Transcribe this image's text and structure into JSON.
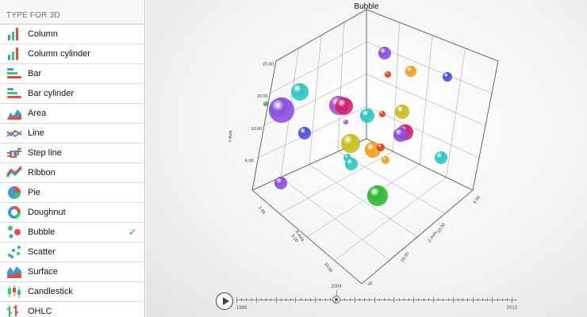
{
  "sidebar": {
    "header": "TYPE FOR 3D",
    "selected_index": 10,
    "items": [
      {
        "label": "Column",
        "icon": "column-chart-icon"
      },
      {
        "label": "Column cylinder",
        "icon": "column-cylinder-chart-icon"
      },
      {
        "label": "Bar",
        "icon": "bar-chart-icon"
      },
      {
        "label": "Bar cylinder",
        "icon": "bar-cylinder-chart-icon"
      },
      {
        "label": "Area",
        "icon": "area-chart-icon"
      },
      {
        "label": "Line",
        "icon": "line-chart-icon"
      },
      {
        "label": "Step line",
        "icon": "step-line-chart-icon"
      },
      {
        "label": "Ribbon",
        "icon": "ribbon-chart-icon"
      },
      {
        "label": "Pie",
        "icon": "pie-chart-icon"
      },
      {
        "label": "Doughnut",
        "icon": "doughnut-chart-icon"
      },
      {
        "label": "Bubble",
        "icon": "bubble-chart-icon"
      },
      {
        "label": "Scatter",
        "icon": "scatter-chart-icon"
      },
      {
        "label": "Surface",
        "icon": "surface-chart-icon"
      },
      {
        "label": "Candlestick",
        "icon": "candlestick-chart-icon"
      },
      {
        "label": "OHLC",
        "icon": "ohlc-chart-icon"
      }
    ],
    "check_glyph": "✓"
  },
  "chart": {
    "title": "Bubble",
    "y_axis_label": "Y-Axis",
    "x_axis_label": "X-Axis",
    "z_axis_label": "Z-Axis",
    "y_ticks": [
      "20.00",
      "15.00",
      "10.00",
      "5.00"
    ],
    "x_ticks": [
      "2.00",
      "5.00",
      "10.00",
      "15.00"
    ],
    "z_ticks": [
      "20.00",
      "15.00",
      "10.00",
      "5.00"
    ]
  },
  "timeline": {
    "start_label": "1999",
    "end_label": "2013",
    "current_label": "2004",
    "current_fraction": 0.357
  },
  "colors": {
    "accent": "#1a7cf0",
    "bubble_purple": "#8a4fe0",
    "bubble_teal": "#2ec7c7",
    "bubble_orange": "#f0a020",
    "bubble_yellow": "#c8c020",
    "bubble_green": "#30b830",
    "bubble_pink": "#d02070",
    "bubble_red": "#e04020",
    "bubble_blue": "#4a55d8",
    "bubble_magenta": "#b050d0"
  }
}
